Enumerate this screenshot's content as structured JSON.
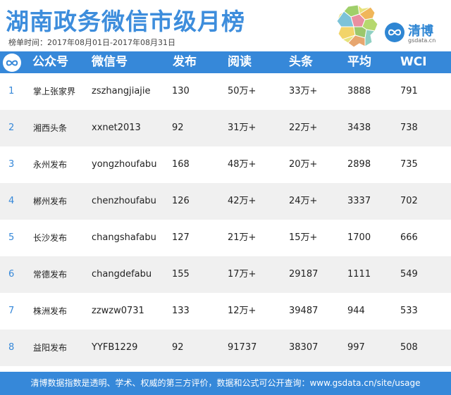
{
  "header": {
    "title": "湖南政务微信市级月榜",
    "subtitle": "榜单时间：2017年08月01日-2017年08月31日",
    "brand_name": "清博",
    "brand_url": "gsdata.cn"
  },
  "table": {
    "columns": [
      "公众号",
      "微信号",
      "发布",
      "阅读",
      "头条",
      "平均",
      "WCI"
    ],
    "rows": [
      {
        "rank": "1",
        "name": "掌上张家界",
        "id": "zszhangjiajie",
        "posts": "130",
        "reads": "50万+",
        "headline": "33万+",
        "avg": "3888",
        "wci": "791"
      },
      {
        "rank": "2",
        "name": "湘西头条",
        "id": "xxnet2013",
        "posts": "92",
        "reads": "31万+",
        "headline": "22万+",
        "avg": "3438",
        "wci": "738"
      },
      {
        "rank": "3",
        "name": "永州发布",
        "id": "yongzhoufabu",
        "posts": "168",
        "reads": "48万+",
        "headline": "20万+",
        "avg": "2898",
        "wci": "735"
      },
      {
        "rank": "4",
        "name": "郴州发布",
        "id": "chenzhoufabu",
        "posts": "126",
        "reads": "42万+",
        "headline": "24万+",
        "avg": "3337",
        "wci": "702"
      },
      {
        "rank": "5",
        "name": "长沙发布",
        "id": "changshafabu",
        "posts": "127",
        "reads": "21万+",
        "headline": "15万+",
        "avg": "1700",
        "wci": "666"
      },
      {
        "rank": "6",
        "name": "常德发布",
        "id": "changdefabu",
        "posts": "155",
        "reads": "17万+",
        "headline": "29187",
        "avg": "1111",
        "wci": "549"
      },
      {
        "rank": "7",
        "name": "株洲发布",
        "id": "zzwzw0731",
        "posts": "133",
        "reads": "12万+",
        "headline": "39487",
        "avg": "944",
        "wci": "533"
      },
      {
        "rank": "8",
        "name": "益阳发布",
        "id": "YYFB1229",
        "posts": "92",
        "reads": "91737",
        "headline": "38307",
        "avg": "997",
        "wci": "508"
      }
    ]
  },
  "footer": {
    "text": "清博数据指数是透明、学术、权威的第三方评价，数据和公式可公开查询：www.gsdata.cn/site/usage"
  },
  "colors": {
    "accent": "#3688d9",
    "title": "#3d8ddc",
    "row_alt": "#f0f0f0"
  }
}
